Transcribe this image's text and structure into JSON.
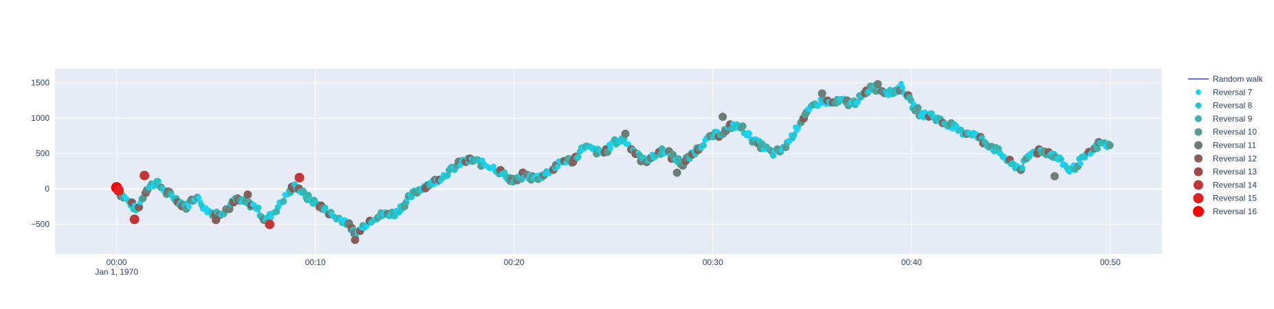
{
  "chart_data": {
    "type": "scatter",
    "title": "",
    "xlabel": "",
    "ylabel": "",
    "x_unit": "minutes",
    "xlim": [
      -3.1,
      52.6
    ],
    "ylim": [
      -920,
      1700
    ],
    "grid": true,
    "legend_position": "right",
    "background_color": "#e5ecf6",
    "x_ticks": [
      {
        "value": 0,
        "label": "00:00",
        "sublabel": "Jan 1, 1970"
      },
      {
        "value": 10,
        "label": "00:10"
      },
      {
        "value": 20,
        "label": "00:20"
      },
      {
        "value": 30,
        "label": "00:30"
      },
      {
        "value": 40,
        "label": "00:40"
      },
      {
        "value": 50,
        "label": "00:50"
      }
    ],
    "y_ticks": [
      {
        "value": 1500,
        "label": "1500"
      },
      {
        "value": 1000,
        "label": "1000"
      },
      {
        "value": 500,
        "label": "500"
      },
      {
        "value": 0,
        "label": "0"
      },
      {
        "value": -500,
        "label": "−500"
      }
    ],
    "line_series": {
      "name": "Random walk",
      "color": "#636efa",
      "x": [
        0,
        0.5,
        1,
        1.5,
        2,
        2.5,
        3,
        3.5,
        4,
        4.5,
        5,
        5.5,
        6,
        6.5,
        7,
        7.5,
        8,
        8.5,
        9,
        9.5,
        10,
        10.5,
        11,
        11.5,
        12,
        12.5,
        13,
        13.5,
        14,
        14.5,
        15,
        15.5,
        16,
        16.5,
        17,
        17.5,
        18,
        18.5,
        19,
        19.5,
        20,
        20.5,
        21,
        21.5,
        22,
        22.5,
        23,
        23.5,
        24,
        24.5,
        25,
        25.5,
        26,
        26.5,
        27,
        27.5,
        28,
        28.5,
        29,
        29.5,
        30,
        30.5,
        31,
        31.5,
        32,
        32.5,
        33,
        33.5,
        34,
        34.5,
        35,
        35.5,
        36,
        36.5,
        37,
        37.5,
        38,
        38.5,
        39,
        39.5,
        40,
        40.5,
        41,
        41.5,
        42,
        42.5,
        43,
        43.5,
        44,
        44.5,
        45,
        45.5,
        46,
        46.5,
        47,
        47.5,
        48,
        48.5,
        49,
        49.5,
        50
      ],
      "y": [
        0,
        -150,
        -300,
        0,
        100,
        -50,
        -150,
        -250,
        -100,
        -300,
        -350,
        -300,
        -150,
        -200,
        -250,
        -450,
        -300,
        -100,
        50,
        -100,
        -200,
        -300,
        -400,
        -450,
        -650,
        -500,
        -400,
        -350,
        -350,
        -200,
        -50,
        50,
        100,
        200,
        300,
        400,
        400,
        350,
        300,
        200,
        100,
        200,
        150,
        200,
        300,
        400,
        400,
        600,
        550,
        500,
        650,
        700,
        550,
        400,
        450,
        550,
        450,
        350,
        500,
        650,
        750,
        800,
        900,
        850,
        700,
        600,
        500,
        550,
        750,
        1000,
        1150,
        1250,
        1200,
        1250,
        1200,
        1300,
        1450,
        1400,
        1350,
        1450,
        1200,
        1050,
        1050,
        950,
        900,
        800,
        800,
        700,
        600,
        500,
        350,
        300,
        500,
        550,
        500,
        400,
        250,
        400,
        500,
        650,
        600
      ]
    },
    "marker_series": [
      {
        "name": "Reversal 7",
        "color": "#19d3f3",
        "size": 4
      },
      {
        "name": "Reversal 8",
        "color": "#21c7cc",
        "size": 4.5
      },
      {
        "name": "Reversal 9",
        "color": "#3ab2ae",
        "size": 5
      },
      {
        "name": "Reversal 10",
        "color": "#539c94",
        "size": 5.5
      },
      {
        "name": "Reversal 11",
        "color": "#6f7d78",
        "size": 6
      },
      {
        "name": "Reversal 12",
        "color": "#875c59",
        "size": 6
      },
      {
        "name": "Reversal 13",
        "color": "#a04a4a",
        "size": 6.5
      },
      {
        "name": "Reversal 14",
        "color": "#c43535",
        "size": 7
      },
      {
        "name": "Reversal 15",
        "color": "#e21e1e",
        "size": 7.5
      },
      {
        "name": "Reversal 16",
        "color": "#ff0000",
        "size": 8
      }
    ],
    "highlight_points": [
      {
        "series": "Reversal 16",
        "x": 0,
        "y": 20
      },
      {
        "series": "Reversal 15",
        "x": 0.1,
        "y": -20
      },
      {
        "series": "Reversal 14",
        "x": 0.9,
        "y": -430
      },
      {
        "series": "Reversal 14",
        "x": 1.4,
        "y": 190
      },
      {
        "series": "Reversal 14",
        "x": 7.7,
        "y": -500
      },
      {
        "series": "Reversal 14",
        "x": 9.2,
        "y": 160
      },
      {
        "series": "Reversal 12",
        "x": 12,
        "y": -720
      },
      {
        "series": "Reversal 12",
        "x": 5,
        "y": -440
      },
      {
        "series": "Reversal 12",
        "x": 6.6,
        "y": -80
      },
      {
        "series": "Reversal 11",
        "x": 25.6,
        "y": 780
      },
      {
        "series": "Reversal 11",
        "x": 30.5,
        "y": 1020
      },
      {
        "series": "Reversal 11",
        "x": 35.5,
        "y": 1350
      },
      {
        "series": "Reversal 11",
        "x": 38.3,
        "y": 1480
      },
      {
        "series": "Reversal 11",
        "x": 47.2,
        "y": 180
      },
      {
        "series": "Reversal 11",
        "x": 28.2,
        "y": 230
      }
    ]
  },
  "legend": {
    "items": [
      "Random walk",
      "Reversal 7",
      "Reversal 8",
      "Reversal 9",
      "Reversal 10",
      "Reversal 11",
      "Reversal 12",
      "Reversal 13",
      "Reversal 14",
      "Reversal 15",
      "Reversal 16"
    ]
  }
}
